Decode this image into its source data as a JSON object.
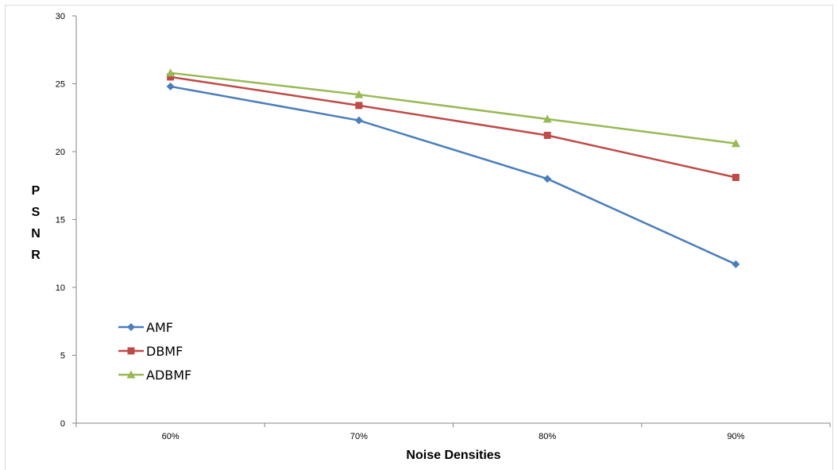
{
  "chart_data": {
    "type": "line",
    "title": "",
    "xlabel": "Noise Densities",
    "ylabel": [
      "P",
      "S",
      "N",
      "R"
    ],
    "categories": [
      "60%",
      "70%",
      "80%",
      "90%"
    ],
    "ylim": [
      0,
      30
    ],
    "yticks": [
      0,
      5,
      10,
      15,
      20,
      25,
      30
    ],
    "grid": false,
    "legend_position": "bottom-left",
    "series": [
      {
        "name": "AMF",
        "values": [
          24.8,
          22.3,
          18.0,
          11.7
        ],
        "color": "#4a7ebb",
        "marker": "diamond"
      },
      {
        "name": "DBMF",
        "values": [
          25.5,
          23.4,
          21.2,
          18.1
        ],
        "color": "#be4b48",
        "marker": "square"
      },
      {
        "name": "ADBMF",
        "values": [
          25.8,
          24.2,
          22.4,
          20.6
        ],
        "color": "#98b954",
        "marker": "triangle"
      }
    ]
  }
}
